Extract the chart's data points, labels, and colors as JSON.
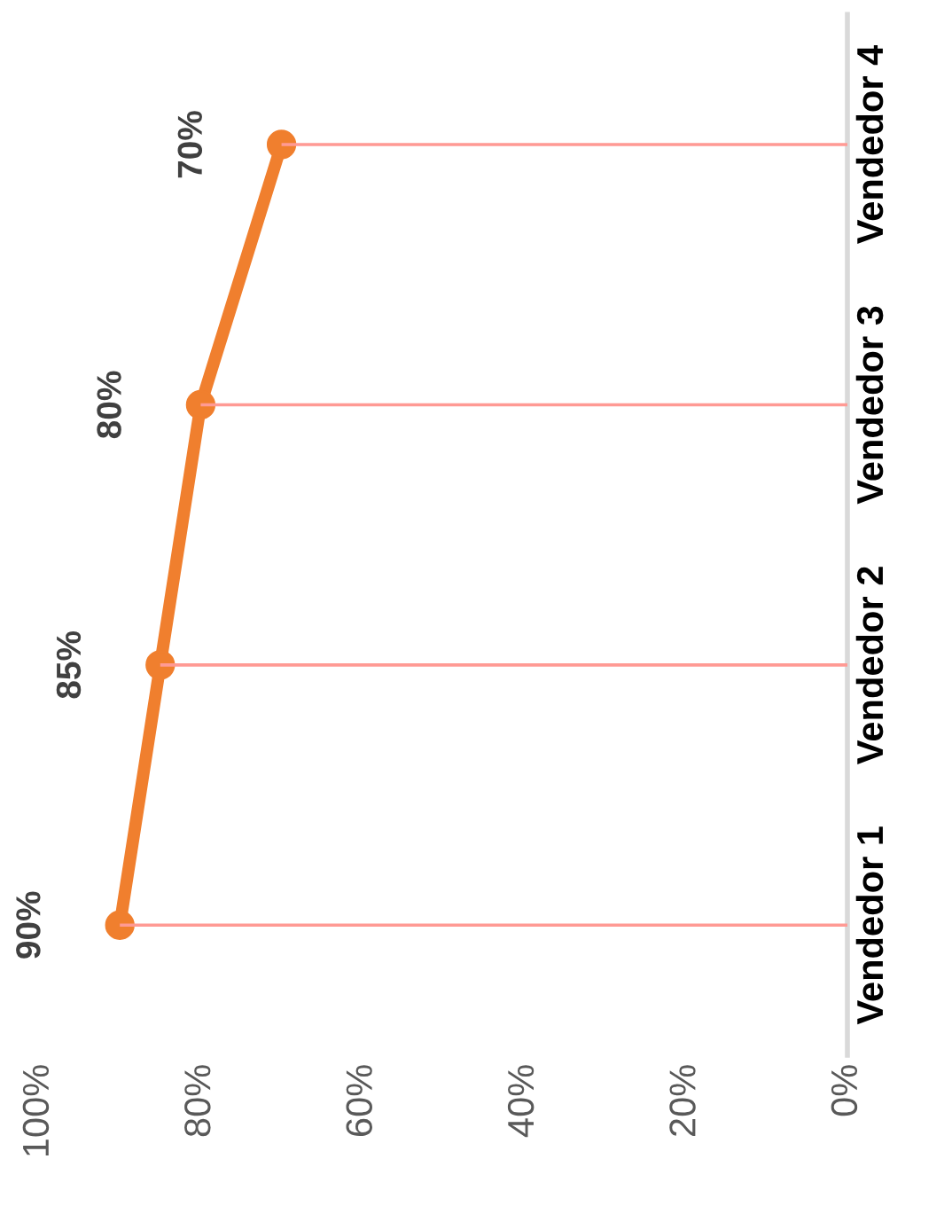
{
  "chart_data": {
    "type": "line",
    "orientation": "horizontal",
    "categories": [
      "Vendedor 4",
      "Vendedor 3",
      "Vendedor 2",
      "Vendedor 1"
    ],
    "xlim": [
      100,
      0
    ],
    "xticks": [
      {
        "value": 0,
        "label": "0%"
      },
      {
        "value": 20,
        "label": "20%"
      },
      {
        "value": 40,
        "label": "40%"
      },
      {
        "value": 60,
        "label": "60%"
      },
      {
        "value": 80,
        "label": "80%"
      },
      {
        "value": 100,
        "label": "100%"
      }
    ],
    "series": [
      {
        "type": "bar",
        "color": "#ff9a94",
        "values": [
          70,
          80,
          85,
          90
        ]
      },
      {
        "color": "#f07f2e",
        "marker": "circle",
        "values": [
          70,
          80,
          85,
          90
        ],
        "value_labels": [
          "70%",
          "80%",
          "85%",
          "90%"
        ]
      }
    ],
    "grid": false,
    "legend": false
  }
}
